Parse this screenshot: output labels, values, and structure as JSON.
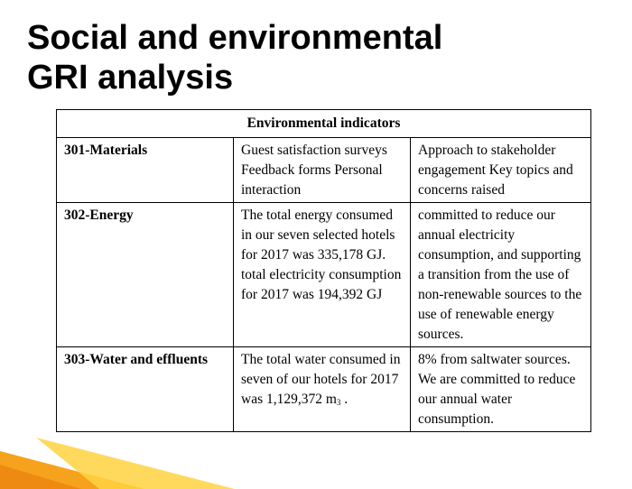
{
  "slide": {
    "title_line1": "Social and environmental",
    "title_line2": "GRI analysis"
  },
  "colors": {
    "accent_orange": "#F6A21D",
    "accent_yellow": "#FFD23F"
  },
  "table": {
    "header": "Environmental indicators",
    "rows": [
      {
        "indicator": "301-Materials",
        "col2": "Guest satisfaction surveys Feedback forms Personal interaction",
        "col3": "Approach to stakeholder engagement Key topics and concerns raised"
      },
      {
        "indicator": "302-Energy",
        "col2": "The total energy consumed in our seven selected hotels for 2017 was 335,178 GJ. total electricity consumption for 2017 was 194,392 GJ",
        "col3": "committed to reduce our annual electricity consumption, and supporting a transition from the use of non-renewable sources to the use of renewable energy sources."
      },
      {
        "indicator": "303-Water and effluents",
        "col2": "The total water consumed in seven of our hotels for 2017 was 1,129,372 m",
        "col2_unit_sup": "3",
        "col2_end": " .",
        "col3": "8% from saltwater sources. We are committed to reduce our annual water consumption."
      }
    ]
  }
}
